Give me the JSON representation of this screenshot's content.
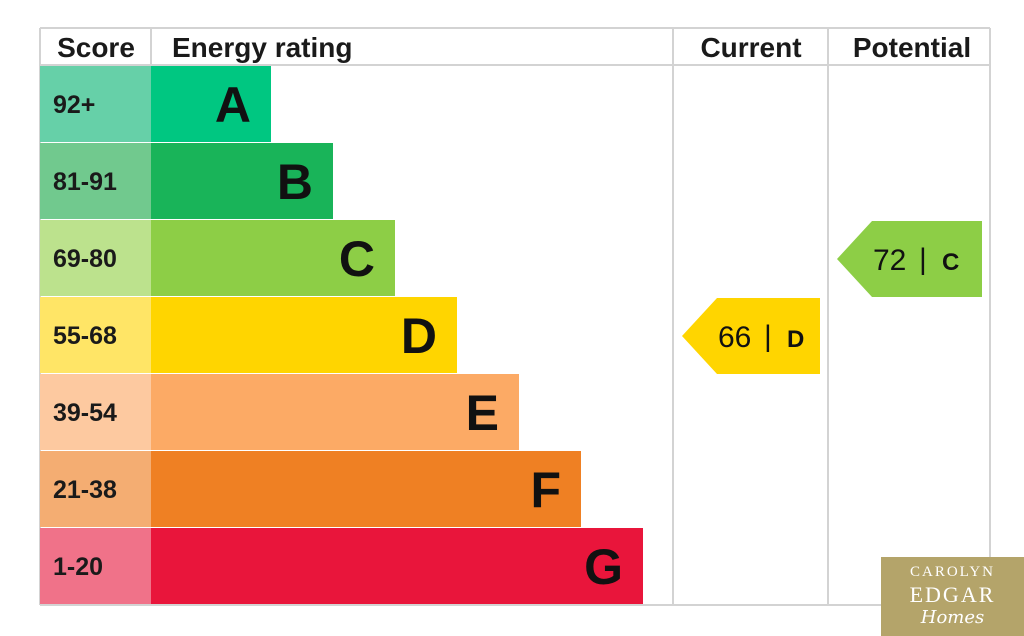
{
  "chart_data": {
    "type": "table",
    "headers": {
      "score": "Score",
      "rating": "Energy rating",
      "current": "Current",
      "potential": "Potential"
    },
    "bands": [
      {
        "range": "92+",
        "letter": "A",
        "color": "#00c781",
        "score_color": "#66d0a8"
      },
      {
        "range": "81-91",
        "letter": "B",
        "color": "#19b459",
        "score_color": "#71c98e"
      },
      {
        "range": "69-80",
        "letter": "C",
        "color": "#8dce46",
        "score_color": "#bce28d"
      },
      {
        "range": "55-68",
        "letter": "D",
        "color": "#ffd500",
        "score_color": "#ffe566"
      },
      {
        "range": "39-54",
        "letter": "E",
        "color": "#fcaa65",
        "score_color": "#fdc9a0"
      },
      {
        "range": "21-38",
        "letter": "F",
        "color": "#ef8023",
        "score_color": "#f4ad72"
      },
      {
        "range": "1-20",
        "letter": "G",
        "color": "#e9153b",
        "score_color": "#f07289"
      }
    ],
    "current": {
      "value": 66,
      "letter": "D",
      "color": "#ffd500"
    },
    "potential": {
      "value": 72,
      "letter": "C",
      "color": "#8dce46"
    }
  },
  "logo": {
    "line1": "CAROLYN",
    "line2": "EDGAR",
    "line3": "Homes",
    "color": "#b4a46a"
  }
}
